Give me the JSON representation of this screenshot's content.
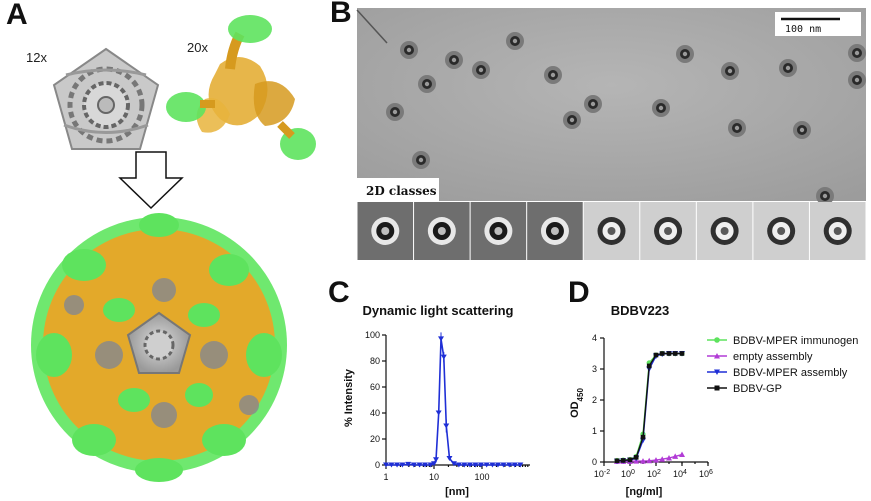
{
  "panels": {
    "a": "A",
    "b": "B",
    "c": "C",
    "d": "D"
  },
  "panel_a": {
    "label_12x": "12x",
    "label_20x": "20x"
  },
  "panel_b": {
    "scalebar_label": "100 nm",
    "classes_label": "2D classes",
    "class_count": 9
  },
  "colors": {
    "green": "#5ee35e",
    "gold": "#e3a92a",
    "gray": "#8c8c8c",
    "blue": "#1f2fd6",
    "purple": "#b23cd6",
    "black": "#111111"
  },
  "chart_data": [
    {
      "type": "line",
      "title": "Dynamic light scattering",
      "xlabel": "[nm]",
      "ylabel": "% Intensity",
      "xscale": "log",
      "xlim": [
        1,
        1000
      ],
      "ylim": [
        0,
        100
      ],
      "xticks": [
        "1",
        "10",
        "100"
      ],
      "yticks": [
        "0",
        "20",
        "40",
        "60",
        "80",
        "100"
      ],
      "grid": false,
      "series": [
        {
          "color": "#1f2fd6",
          "x": [
            1,
            1.3,
            1.7,
            2.2,
            2.9,
            3.8,
            5,
            6.5,
            8.5,
            10,
            11,
            12.5,
            14,
            16,
            18,
            21,
            26,
            33,
            43,
            56,
            73,
            95,
            125,
            165,
            215,
            280,
            370,
            480,
            630
          ],
          "y": [
            0,
            0,
            0,
            0,
            0.5,
            0,
            0,
            0,
            0,
            1,
            4,
            40,
            97,
            83,
            30,
            5,
            1,
            0,
            0,
            0,
            0,
            0,
            0,
            0,
            0,
            0,
            0,
            0,
            0
          ]
        }
      ]
    },
    {
      "type": "line",
      "title": "BDBV223",
      "xlabel": "[ng/ml]",
      "ylabel": "OD450",
      "xscale": "log",
      "xlim": [
        0.01,
        1000000
      ],
      "ylim": [
        0,
        4
      ],
      "xticks": [
        "10-2",
        "100",
        "102",
        "104",
        "106"
      ],
      "yticks": [
        "0",
        "1",
        "2",
        "3",
        "4"
      ],
      "grid": false,
      "legend_position": "right",
      "x": [
        0.1,
        0.3,
        1,
        3,
        10,
        30,
        100,
        300,
        1000,
        3000,
        10000
      ],
      "series": [
        {
          "name": "BDBV-MPER immunogen",
          "color": "#5ee35e",
          "marker": "circle",
          "values": [
            0.05,
            0.06,
            0.08,
            0.18,
            0.9,
            3.2,
            3.45,
            3.5,
            3.5,
            3.5,
            3.5
          ]
        },
        {
          "name": "empty assembly",
          "color": "#b23cd6",
          "marker": "triangle-up",
          "values": [
            0.02,
            0.02,
            0.02,
            0.03,
            0.03,
            0.04,
            0.06,
            0.09,
            0.13,
            0.18,
            0.24
          ]
        },
        {
          "name": "BDBV-MPER assembly",
          "color": "#1f2fd6",
          "marker": "triangle-down",
          "values": [
            0.03,
            0.04,
            0.06,
            0.12,
            0.7,
            3.0,
            3.42,
            3.48,
            3.5,
            3.5,
            3.5
          ]
        },
        {
          "name": "BDBV-GP",
          "color": "#111111",
          "marker": "square",
          "values": [
            0.04,
            0.05,
            0.07,
            0.15,
            0.8,
            3.1,
            3.45,
            3.5,
            3.5,
            3.5,
            3.5
          ]
        }
      ]
    }
  ]
}
